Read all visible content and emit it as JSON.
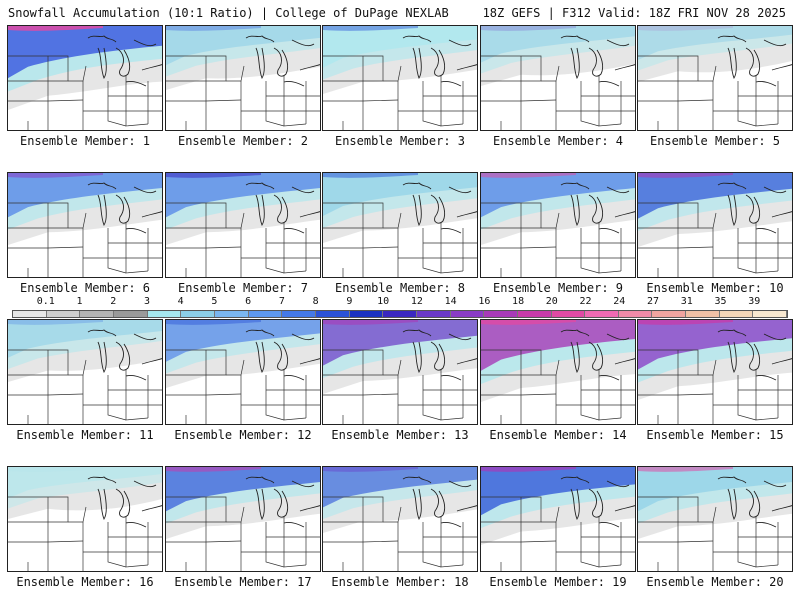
{
  "header": {
    "left": "Snowfall Accumulation (10:1 Ratio) | College of DuPage NEXLAB",
    "right": "18Z GEFS | F312 Valid: 18Z FRI NOV 28 2025"
  },
  "legend": {
    "ticks": [
      "0.1",
      "1",
      "2",
      "3",
      "4",
      "5",
      "6",
      "7",
      "8",
      "9",
      "10",
      "12",
      "14",
      "16",
      "18",
      "20",
      "22",
      "24",
      "27",
      "31",
      "35",
      "39"
    ],
    "colors": [
      "#e6e6e6",
      "#cfcfcf",
      "#b4b4b4",
      "#9a9a9a",
      "#a6e8ef",
      "#8ccfe8",
      "#7ab6f0",
      "#5e98ee",
      "#4579e8",
      "#2a52d8",
      "#1b32c2",
      "#3a28c0",
      "#6a38c8",
      "#8a3cc6",
      "#a83ab8",
      "#c83aaa",
      "#e04aa4",
      "#ee6ab2",
      "#f08aa8",
      "#f0a4a0",
      "#f0c0a6",
      "#f4d6b8",
      "#f8e8d0"
    ]
  },
  "panels": [
    {
      "label": "Ensemble Member: 1",
      "level": 0.85,
      "core": "#e04aa4",
      "band": "#3a5ae0"
    },
    {
      "label": "Ensemble Member: 2",
      "level": 0.35,
      "core": "#3a5ae0",
      "band": "#8ccfe8"
    },
    {
      "label": "Ensemble Member: 3",
      "level": 0.45,
      "core": "#2a52d8",
      "band": "#a6e8ef"
    },
    {
      "label": "Ensemble Member: 4",
      "level": 0.25,
      "core": "#6a38c8",
      "band": "#8ccfe8"
    },
    {
      "label": "Ensemble Member: 5",
      "level": 0.15,
      "core": "#a83ab8",
      "band": "#8ccfe8"
    },
    {
      "label": "Ensemble Member: 6",
      "level": 0.55,
      "core": "#8a3cc6",
      "band": "#4579e8"
    },
    {
      "label": "Ensemble Member: 7",
      "level": 0.55,
      "core": "#3a28c0",
      "band": "#4579e8"
    },
    {
      "label": "Ensemble Member: 8",
      "level": 0.5,
      "core": "#2a52d8",
      "band": "#8ccfe8"
    },
    {
      "label": "Ensemble Member: 9",
      "level": 0.55,
      "core": "#e04aa4",
      "band": "#4579e8"
    },
    {
      "label": "Ensemble Member: 10",
      "level": 0.6,
      "core": "#a83ab8",
      "band": "#2a52d8"
    },
    {
      "label": "Ensemble Member: 11",
      "level": 0.3,
      "core": "#4579e8",
      "band": "#8ccfe8"
    },
    {
      "label": "Ensemble Member: 12",
      "level": 0.45,
      "core": "#2a52d8",
      "band": "#4579e8"
    },
    {
      "label": "Ensemble Member: 13",
      "level": 0.6,
      "core": "#a83ab8",
      "band": "#6a38c8"
    },
    {
      "label": "Ensemble Member: 14",
      "level": 0.8,
      "core": "#e04aa4",
      "band": "#a83ab8"
    },
    {
      "label": "Ensemble Member: 15",
      "level": 0.75,
      "core": "#c83aaa",
      "band": "#8a3cc6"
    },
    {
      "label": "Ensemble Member: 16",
      "level": 0.05,
      "core": "#8ccfe8",
      "band": "#a6e8ef"
    },
    {
      "label": "Ensemble Member: 17",
      "level": 0.55,
      "core": "#c83aaa",
      "band": "#2a52d8"
    },
    {
      "label": "Ensemble Member: 18",
      "level": 0.4,
      "core": "#6a38c8",
      "band": "#2a52d8"
    },
    {
      "label": "Ensemble Member: 19",
      "level": 0.7,
      "core": "#a83ab8",
      "band": "#2a52d8"
    },
    {
      "label": "Ensemble Member: 20",
      "level": 0.55,
      "core": "#e04aa4",
      "band": "#8ccfe8"
    }
  ]
}
